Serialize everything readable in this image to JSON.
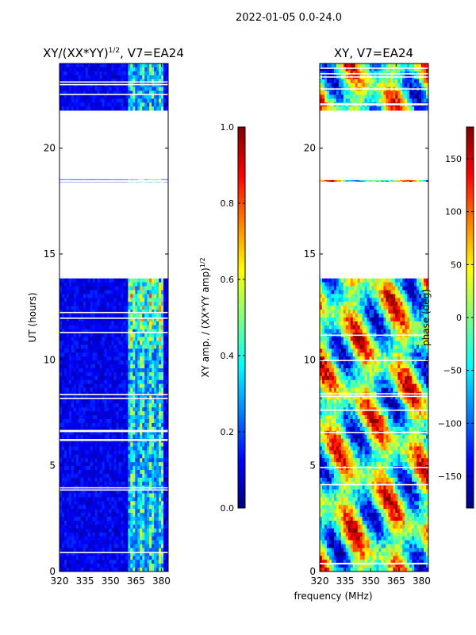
{
  "figure": {
    "suptitle": "2022-01-05 0.0-24.0",
    "shared_xlabel": "frequency (MHz)"
  },
  "chart_data": [
    {
      "type": "heatmap",
      "title": "XY/(XX*YY)",
      "title_sup": "1/2",
      "title_tail": ", V7=EA24",
      "xlabel": "",
      "ylabel": "UT (hours)",
      "x_ticks": [
        320,
        335,
        350,
        365,
        380
      ],
      "x_tick_labels": [
        "320",
        "335",
        "350",
        "365",
        "380"
      ],
      "xlim": [
        320,
        384
      ],
      "y_ticks": [
        0,
        5,
        10,
        15,
        20
      ],
      "y_tick_labels": [
        "0",
        "5",
        "10",
        "15",
        "20"
      ],
      "ylim": [
        0,
        24
      ],
      "data_blocks": [
        [
          0,
          13.8
        ],
        [
          18.3,
          18.7
        ],
        [
          21.8,
          24
        ]
      ],
      "high_band_mhz": [
        360,
        381
      ],
      "colorbar": {
        "label": "XY amp. / (XX*YY amp)",
        "label_sup": "1/2",
        "range": [
          0.0,
          1.0
        ],
        "ticks": [
          0.0,
          0.2,
          0.4,
          0.6,
          0.8,
          1.0
        ],
        "tick_labels": [
          "0.0",
          "0.2",
          "0.4",
          "0.6",
          "0.8",
          "1.0"
        ],
        "colormap": "jet"
      }
    },
    {
      "type": "heatmap",
      "title": "XY, V7=EA24",
      "xlabel": "frequency (MHz)",
      "ylabel": "",
      "x_ticks": [
        320,
        335,
        350,
        365,
        380
      ],
      "x_tick_labels": [
        "320",
        "335",
        "350",
        "365",
        "380"
      ],
      "xlim": [
        320,
        384
      ],
      "y_ticks": [
        0,
        5,
        10,
        15,
        20
      ],
      "y_tick_labels": [
        "0",
        "5",
        "10",
        "15",
        "20"
      ],
      "ylim": [
        0,
        24
      ],
      "data_blocks": [
        [
          0,
          13.8
        ],
        [
          18.3,
          18.7
        ],
        [
          21.8,
          24
        ]
      ],
      "colorbar": {
        "label": "phase (deg)",
        "range": [
          -180,
          180
        ],
        "ticks": [
          -150,
          -100,
          -50,
          0,
          50,
          100,
          150
        ],
        "tick_labels": [
          "−150",
          "−100",
          "−50",
          "0",
          "50",
          "100",
          "150"
        ],
        "colormap": "jet"
      }
    }
  ],
  "colors": {
    "jet": [
      "#00007f",
      "#0000ff",
      "#007fff",
      "#00ffff",
      "#7fff7f",
      "#ffff00",
      "#ff7f00",
      "#ff0000",
      "#7f0000"
    ],
    "axis": "#000000",
    "background": "#ffffff",
    "gap": "#ffffff"
  }
}
